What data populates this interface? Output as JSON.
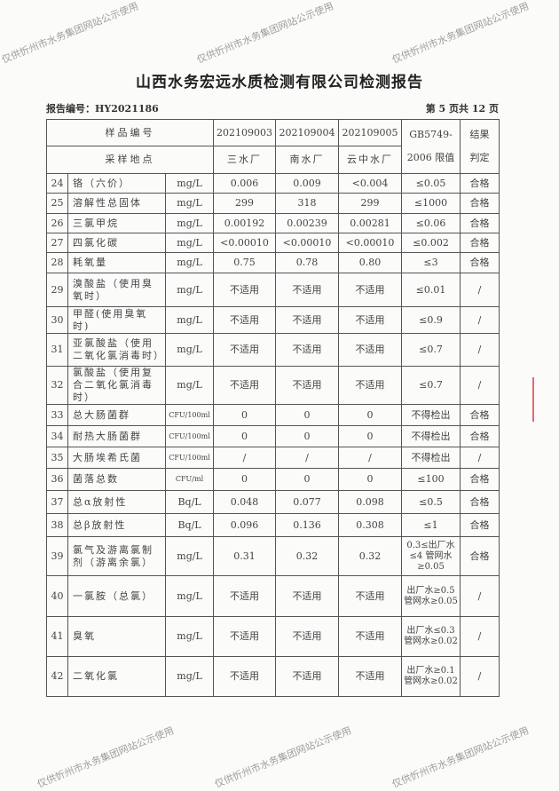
{
  "title": "山西水务宏远水质检测有限公司检测报告",
  "report_no": "报告编号：HY2021186",
  "page_info": "第 5 页共 12 页",
  "header": {
    "sample_no_label": "样品编号",
    "site_label": "采样地点",
    "samples": [
      "202109003",
      "202109004",
      "202109005"
    ],
    "sites": [
      "三水厂",
      "南水厂",
      "云中水厂"
    ],
    "limit_label_1": "GB5749-",
    "limit_label_2": "2006 限值",
    "result_label_1": "结果",
    "result_label_2": "判定"
  },
  "rows": [
    {
      "no": "24",
      "name": "铬（六价）",
      "unit": "mg/L",
      "v1": "0.006",
      "v2": "0.009",
      "v3": "<0.004",
      "limit": "≤0.05",
      "result": "合格"
    },
    {
      "no": "25",
      "name": "溶解性总固体",
      "unit": "mg/L",
      "v1": "299",
      "v2": "318",
      "v3": "299",
      "limit": "≤1000",
      "result": "合格"
    },
    {
      "no": "26",
      "name": "三氯甲烷",
      "unit": "mg/L",
      "v1": "0.00192",
      "v2": "0.00239",
      "v3": "0.00281",
      "limit": "≤0.06",
      "result": "合格"
    },
    {
      "no": "27",
      "name": "四氯化碳",
      "unit": "mg/L",
      "v1": "<0.00010",
      "v2": "<0.00010",
      "v3": "<0.00010",
      "limit": "≤0.002",
      "result": "合格"
    },
    {
      "no": "28",
      "name": "耗氧量",
      "unit": "mg/L",
      "v1": "0.75",
      "v2": "0.78",
      "v3": "0.80",
      "limit": "≤3",
      "result": "合格"
    },
    {
      "no": "29",
      "name": "溴酸盐（使用臭氧时）",
      "unit": "mg/L",
      "v1": "不适用",
      "v2": "不适用",
      "v3": "不适用",
      "limit": "≤0.01",
      "result": "/"
    },
    {
      "no": "30",
      "name": "甲醛(使用臭氧时)",
      "unit": "mg/L",
      "v1": "不适用",
      "v2": "不适用",
      "v3": "不适用",
      "limit": "≤0.9",
      "result": "/"
    },
    {
      "no": "31",
      "name": "亚氯酸盐（使用二氧化氯消毒时）",
      "unit": "mg/L",
      "v1": "不适用",
      "v2": "不适用",
      "v3": "不适用",
      "limit": "≤0.7",
      "result": "/"
    },
    {
      "no": "32",
      "name": "氯酸盐（使用复合二氧化氯消毒时）",
      "unit": "mg/L",
      "v1": "不适用",
      "v2": "不适用",
      "v3": "不适用",
      "limit": "≤0.7",
      "result": "/"
    },
    {
      "no": "33",
      "name": "总大肠菌群",
      "unit": "CFU/100ml",
      "v1": "0",
      "v2": "0",
      "v3": "0",
      "limit": "不得检出",
      "result": "合格"
    },
    {
      "no": "34",
      "name": "耐热大肠菌群",
      "unit": "CFU/100ml",
      "v1": "0",
      "v2": "0",
      "v3": "0",
      "limit": "不得检出",
      "result": "合格"
    },
    {
      "no": "35",
      "name": "大肠埃希氏菌",
      "unit": "CFU/100ml",
      "v1": "/",
      "v2": "/",
      "v3": "/",
      "limit": "不得检出",
      "result": "/"
    },
    {
      "no": "36",
      "name": "菌落总数",
      "unit": "CFU/ml",
      "v1": "0",
      "v2": "0",
      "v3": "0",
      "limit": "≤100",
      "result": "合格"
    },
    {
      "no": "37",
      "name": "总α放射性",
      "unit": "Bq/L",
      "v1": "0.048",
      "v2": "0.077",
      "v3": "0.098",
      "limit": "≤0.5",
      "result": "合格"
    },
    {
      "no": "38",
      "name": "总β放射性",
      "unit": "Bq/L",
      "v1": "0.096",
      "v2": "0.136",
      "v3": "0.308",
      "limit": "≤1",
      "result": "合格"
    },
    {
      "no": "39",
      "name": "氯气及游离氯制剂（游离余氯）",
      "unit": "mg/L",
      "v1": "0.31",
      "v2": "0.32",
      "v3": "0.32",
      "limit": "0.3≤出厂水≤4 管网水≥0.05",
      "result": "合格"
    },
    {
      "no": "40",
      "name": "一氯胺（总氯）",
      "unit": "mg/L",
      "v1": "不适用",
      "v2": "不适用",
      "v3": "不适用",
      "limit": "出厂水≥0.5 管网水≥0.05",
      "result": "/"
    },
    {
      "no": "41",
      "name": "臭氧",
      "unit": "mg/L",
      "v1": "不适用",
      "v2": "不适用",
      "v3": "不适用",
      "limit": "出厂水≤0.3 管网水≥0.02",
      "result": "/"
    },
    {
      "no": "42",
      "name": "二氧化氯",
      "unit": "mg/L",
      "v1": "不适用",
      "v2": "不适用",
      "v3": "不适用",
      "limit": "出厂水≥0.1 管网水≥0.02",
      "result": "/"
    }
  ],
  "watermark": "仅供忻州市水务集团网站公示使用",
  "colors": {
    "stamp": "#dc283c",
    "border": "#555555"
  }
}
